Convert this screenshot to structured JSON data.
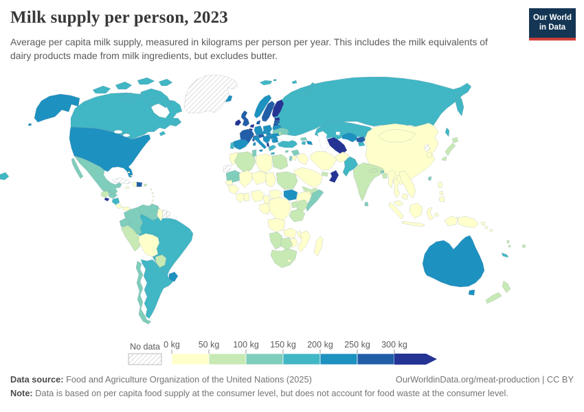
{
  "header": {
    "title": "Milk supply per person, 2023",
    "logo": {
      "line1": "Our World",
      "line2": "in Data"
    }
  },
  "subtitle": "Average per capita milk supply, measured in kilograms per person per year. This includes the milk equivalents of dairy products made from milk ingredients, but excludes butter.",
  "chart_data": {
    "type": "choropleth",
    "title": "Milk supply per person, 2023",
    "unit": "kilograms per person per year",
    "legend": {
      "no_data_label": "No data",
      "tick_labels": [
        "0 kg",
        "50 kg",
        "100 kg",
        "150 kg",
        "200 kg",
        "250 kg",
        "300 kg"
      ],
      "open_ended_arrow": true
    },
    "colors": [
      "#ffffcc",
      "#c7e9b4",
      "#7fcdbb",
      "#41b6c4",
      "#1d91c0",
      "#225ea8",
      "#253494"
    ],
    "bin_ranges": [
      "0-50",
      "50-100",
      "100-150",
      "150-200",
      "200-250",
      "250-300",
      "300+"
    ],
    "no_data_style": "gray-diagonal-hatch",
    "countries": {
      "russia": 3,
      "kazakhstan": 3,
      "uzbekistan": 4,
      "turkmenistan": 6,
      "kyrgyzstan": 5,
      "tajikistan": 3,
      "mongolia": 0,
      "china": 0,
      "north_korea": "no-data",
      "south_korea": 0,
      "japan": 1,
      "taiwan": 2,
      "india": 1,
      "pakistan": 3,
      "afghanistan": 0,
      "nepal": 1,
      "bhutan": 2,
      "bangladesh": 1,
      "sri_lanka": 2,
      "myanmar": 0,
      "thailand": 0,
      "laos": 0,
      "vietnam": 0,
      "cambodia": 0,
      "malaysia": 0,
      "philippines": 0,
      "indonesia": 0,
      "papua_new_guinea": 0,
      "solomon_islands": 0,
      "vanuatu": 1,
      "new_caledonia": 3,
      "fiji": 1,
      "australia": 4,
      "new_zealand": 1,
      "turkey": 3,
      "cyprus": 2,
      "syria": 2,
      "israel": 2,
      "jordan": 0,
      "iraq": 0,
      "iran": 0,
      "saudi_arabia": 0,
      "yemen": 1,
      "oman": 6,
      "united_arab_emirates": 1,
      "georgia": 2,
      "armenia": 3,
      "azerbaijan": 4,
      "iceland": 4,
      "norway": 4,
      "svalbard": 3,
      "sweden": 5,
      "finland": 6,
      "denmark": 5,
      "estonia": 6,
      "latvia": 5,
      "lithuania": 5,
      "belarus": 4,
      "ukraine": 2,
      "moldova": 1,
      "poland": 4,
      "germany": 4,
      "netherlands": 6,
      "belgium": 6,
      "france": 5,
      "switzerland": 5,
      "austria": 5,
      "czechia": 4,
      "slovakia": 4,
      "hungary": 4,
      "romania": 4,
      "bulgaria": 4,
      "western_balkans": 4,
      "albania": 6,
      "greece": 3,
      "italy": 4,
      "spain": 4,
      "portugal": 3,
      "united_kingdom": 5,
      "ireland": 6,
      "morocco": 0,
      "western_sahara": "no-data",
      "algeria": 1,
      "tunisia": 2,
      "libya": 0,
      "egypt": 1,
      "mauritania": 2,
      "mali": 0,
      "niger": 0,
      "chad": 0,
      "sudan": 1,
      "eritrea": 0,
      "south_sudan": 4,
      "ethiopia": 0,
      "somalia": 2,
      "senegal": 0,
      "guinea": 0,
      "ivory_coast": 0,
      "ghana": 0,
      "nigeria": 0,
      "cameroon": 0,
      "central_african_republic": 0,
      "congo_gabon": 0,
      "drc": 0,
      "uganda": 1,
      "kenya": 1,
      "tanzania": 1,
      "angola": 0,
      "zambia": 0,
      "malawi": 0,
      "mozambique": 0,
      "zimbabwe": 0,
      "namibia": 1,
      "botswana": 1,
      "south_africa": 1,
      "lesotho": 0,
      "madagascar": 0,
      "canada": 3,
      "greenland": "no-data",
      "united_states": 4,
      "mexico": 2,
      "guatemala": 1,
      "belize": 2,
      "honduras": 2,
      "el_salvador": 6,
      "nicaragua": 3,
      "costa_rica": 0,
      "panama": 0,
      "cuba": "no-data",
      "jamaica": 0,
      "haiti": 0,
      "dominican_republic": 5,
      "puerto_rico": 1,
      "bahamas": 0,
      "lesser_antilles": 0,
      "trinidad_and_tobago": 0,
      "colombia": 2,
      "venezuela": 2,
      "guyana": 0,
      "suriname": "no-data",
      "french_guiana": "no-data",
      "ecuador": 2,
      "peru": 1,
      "brazil": 3,
      "bolivia": 0,
      "paraguay": 1,
      "uruguay": 4,
      "argentina": 3,
      "chile": 2
    }
  },
  "footer": {
    "datasource_label": "Data source:",
    "datasource": "Food and Agriculture Organization of the United Nations (2025)",
    "link": "OurWorldinData.org/meat-production | CC BY",
    "note_label": "Note:",
    "note": "Data is based on per capita food supply at the consumer level, but does not account for food waste at the consumer level."
  }
}
